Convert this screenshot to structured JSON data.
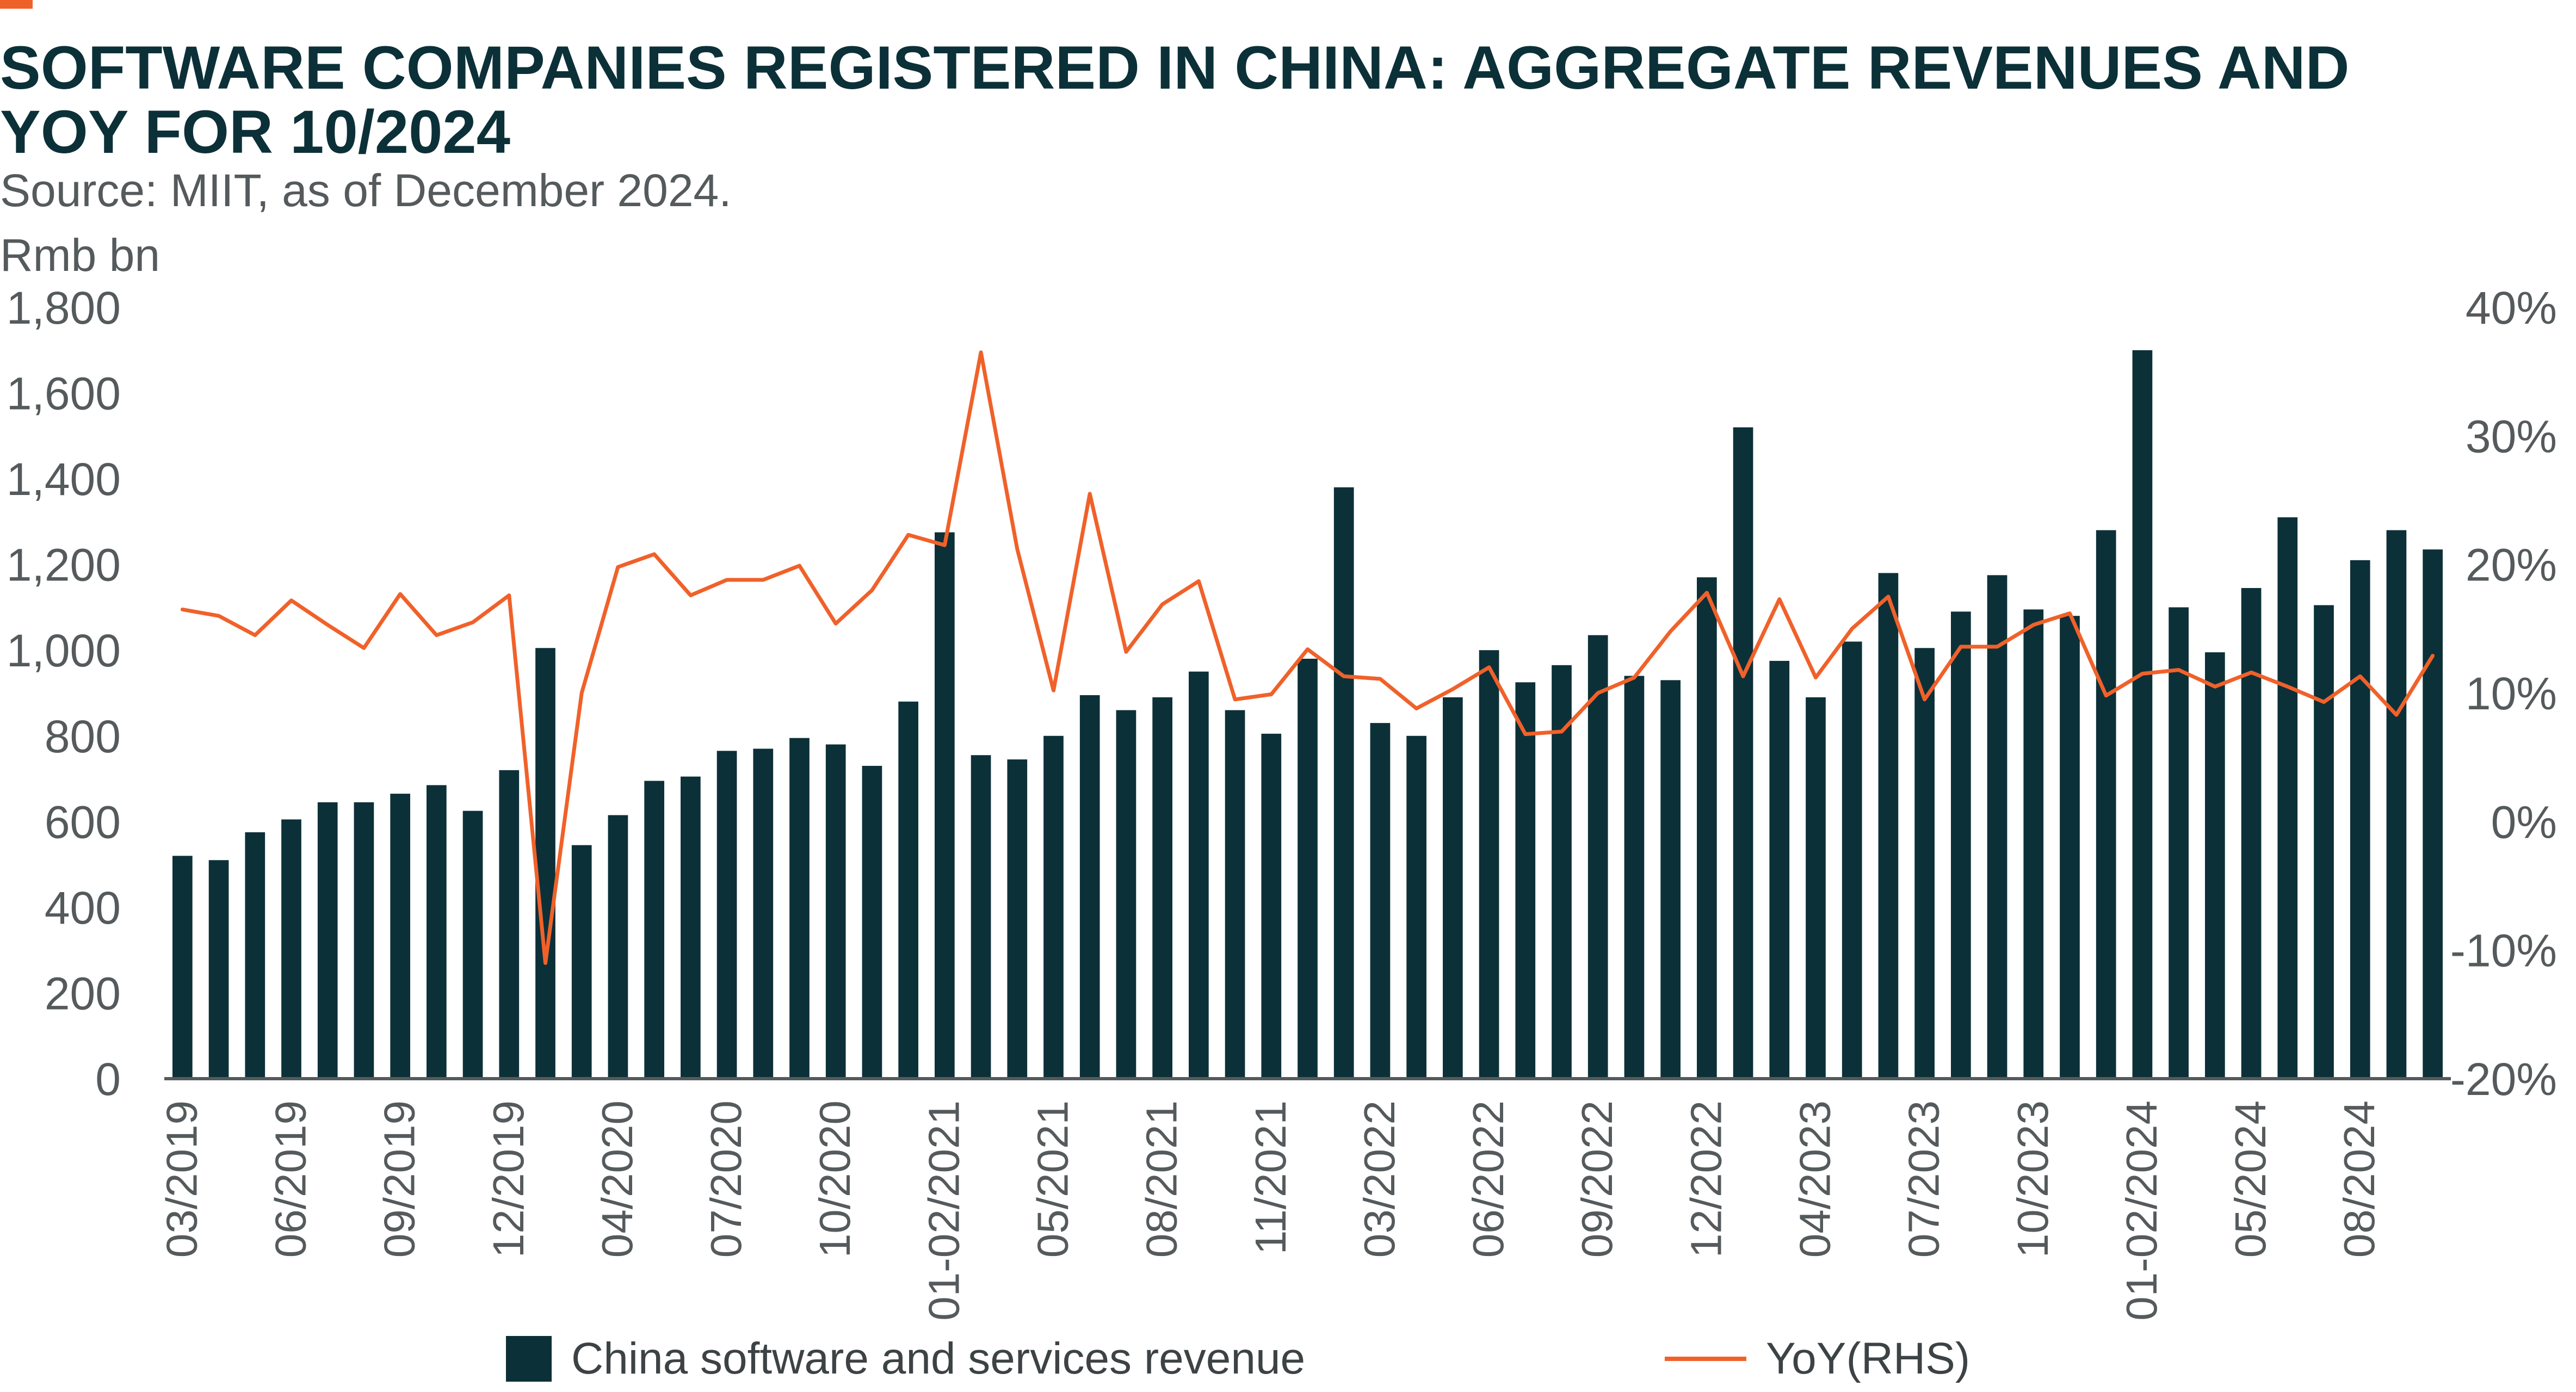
{
  "header": {
    "title": "SOFTWARE COMPANIES REGISTERED IN CHINA: AGGREGATE REVENUES AND YOY FOR 10/2024",
    "subtitle": "Source: MIIT, as of December 2024."
  },
  "colors": {
    "bar": "#0c3038",
    "line": "#f0612a",
    "accent": "#f0612a",
    "axis": "#555a5c",
    "text": "#555a5c"
  },
  "legend": {
    "bar_label": "China software and services revenue",
    "line_label": "YoY(RHS)"
  },
  "chart_data": {
    "type": "bar",
    "ylabel": "Rmb bn",
    "ylim": [
      0,
      1800
    ],
    "yticks": [
      0,
      200,
      400,
      600,
      800,
      1000,
      1200,
      1400,
      1600,
      1800
    ],
    "ytick_labels": [
      "0",
      "200",
      "400",
      "600",
      "800",
      "1,000",
      "1,200",
      "1,400",
      "1,600",
      "1,800"
    ],
    "y2lim": [
      -20,
      40
    ],
    "y2ticks": [
      -20,
      -10,
      0,
      10,
      20,
      30,
      40
    ],
    "y2tick_labels": [
      "-20%",
      "-10%",
      "0%",
      "10%",
      "20%",
      "30%",
      "40%"
    ],
    "categories": [
      "03/2019",
      "04/2019",
      "05/2019",
      "06/2019",
      "07/2019",
      "08/2019",
      "09/2019",
      "10/2019",
      "11/2019",
      "12/2019",
      "01-02/2020",
      "03/2020",
      "04/2020",
      "05/2020",
      "06/2020",
      "07/2020",
      "08/2020",
      "09/2020",
      "10/2020",
      "11/2020",
      "12/2020",
      "01-02/2021",
      "03/2021",
      "04/2021",
      "05/2021",
      "06/2021",
      "07/2021",
      "08/2021",
      "09/2021",
      "10/2021",
      "11/2021",
      "12/2021",
      "01-02/2022",
      "03/2022",
      "04/2022",
      "05/2022",
      "06/2022",
      "07/2022",
      "08/2022",
      "09/2022",
      "10/2022",
      "11/2022",
      "12/2022",
      "01-02/2023",
      "03/2023",
      "04/2023",
      "05/2023",
      "06/2023",
      "07/2023",
      "08/2023",
      "09/2023",
      "10/2023",
      "11/2023",
      "12/2023",
      "01-02/2024",
      "03/2024",
      "04/2024",
      "05/2024",
      "06/2024",
      "07/2024",
      "08/2024",
      "09/2024",
      "10/2024"
    ],
    "x_tick_labels": [
      {
        "index": 0,
        "label": "03/2019"
      },
      {
        "index": 3,
        "label": "06/2019"
      },
      {
        "index": 6,
        "label": "09/2019"
      },
      {
        "index": 9,
        "label": "12/2019"
      },
      {
        "index": 12,
        "label": "04/2020"
      },
      {
        "index": 15,
        "label": "07/2020"
      },
      {
        "index": 18,
        "label": "10/2020"
      },
      {
        "index": 21,
        "label": "01-02/2021"
      },
      {
        "index": 24,
        "label": "05/2021"
      },
      {
        "index": 27,
        "label": "08/2021"
      },
      {
        "index": 30,
        "label": "11/2021"
      },
      {
        "index": 33,
        "label": "03/2022"
      },
      {
        "index": 36,
        "label": "06/2022"
      },
      {
        "index": 39,
        "label": "09/2022"
      },
      {
        "index": 42,
        "label": "12/2022"
      },
      {
        "index": 45,
        "label": "04/2023"
      },
      {
        "index": 48,
        "label": "07/2023"
      },
      {
        "index": 51,
        "label": "10/2023"
      },
      {
        "index": 54,
        "label": "01-02/2024"
      },
      {
        "index": 57,
        "label": "05/2024"
      },
      {
        "index": 60,
        "label": "08/2024"
      }
    ],
    "series": [
      {
        "name": "China software and services revenue",
        "type": "bar",
        "axis": "left",
        "values": [
          520,
          510,
          575,
          605,
          645,
          645,
          665,
          685,
          625,
          720,
          1005,
          545,
          615,
          695,
          705,
          765,
          770,
          795,
          780,
          730,
          880,
          1275,
          755,
          745,
          800,
          895,
          860,
          890,
          950,
          860,
          805,
          980,
          1380,
          830,
          800,
          890,
          1000,
          925,
          965,
          1035,
          940,
          930,
          1170,
          1520,
          975,
          890,
          1020,
          1180,
          1005,
          1090,
          1175,
          1095,
          1080,
          1280,
          1700,
          1100,
          995,
          1145,
          1310,
          1105,
          1210,
          1280,
          1235
        ]
      },
      {
        "name": "YoY(RHS)",
        "type": "line",
        "axis": "right",
        "values": [
          16.5,
          16,
          14.5,
          17.2,
          15.3,
          13.5,
          17.7,
          14.5,
          15.5,
          17.6,
          -11,
          10,
          19.8,
          20.8,
          17.6,
          18.8,
          18.8,
          19.9,
          15.4,
          18,
          22.3,
          21.5,
          36.5,
          21.2,
          10.2,
          25.5,
          13.2,
          16.9,
          18.7,
          9.5,
          9.9,
          13.4,
          11.3,
          11.1,
          8.8,
          10.3,
          12,
          6.8,
          7,
          10,
          11.2,
          14.8,
          17.8,
          11.3,
          17.3,
          11.2,
          15,
          17.5,
          9.5,
          13.6,
          13.6,
          15.3,
          16.2,
          9.8,
          11.5,
          11.8,
          10.5,
          11.6,
          10.5,
          9.3,
          11.3,
          8.3,
          12.9
        ]
      }
    ],
    "legend_position": "bottom",
    "grid": false
  }
}
